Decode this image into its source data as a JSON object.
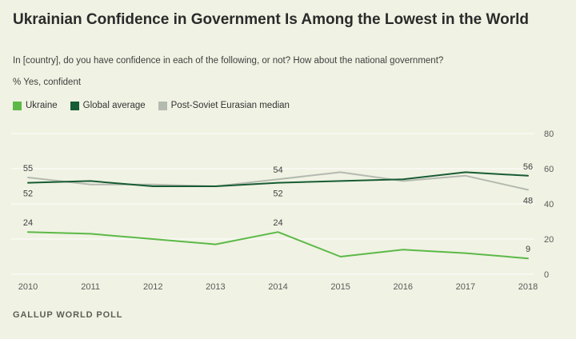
{
  "header": {
    "title": "Ukrainian Confidence in Government Is Among the Lowest in the World",
    "subtitle": "In [country], do you have confidence in each of the following, or not? How about the national government?",
    "axis_note": "% Yes, confident"
  },
  "legend": {
    "items": [
      {
        "label": "Ukraine",
        "color": "#5cb947"
      },
      {
        "label": "Global average",
        "color": "#175c33"
      },
      {
        "label": "Post-Soviet Eurasian median",
        "color": "#b4bab0"
      }
    ]
  },
  "chart_data": {
    "type": "line",
    "title": "Ukrainian Confidence in Government Is Among the Lowest in the World",
    "xlabel": "",
    "ylabel": "% Yes, confident",
    "x": [
      2010,
      2011,
      2012,
      2013,
      2014,
      2015,
      2016,
      2017,
      2018
    ],
    "series": [
      {
        "name": "Ukraine",
        "color": "#5cb947",
        "values": [
          24,
          23,
          20,
          17,
          24,
          10,
          14,
          12,
          9
        ]
      },
      {
        "name": "Global average",
        "color": "#175c33",
        "values": [
          52,
          53,
          50,
          50,
          52,
          53,
          54,
          58,
          56
        ]
      },
      {
        "name": "Post-Soviet Eurasian median",
        "color": "#b4bab0",
        "values": [
          55,
          51,
          51,
          50,
          54,
          58,
          53,
          56,
          48
        ]
      }
    ],
    "point_labels": [
      {
        "series": "Post-Soviet Eurasian median",
        "year": 2010,
        "text": "55",
        "position": "above"
      },
      {
        "series": "Global average",
        "year": 2010,
        "text": "52",
        "position": "below"
      },
      {
        "series": "Ukraine",
        "year": 2010,
        "text": "24",
        "position": "above"
      },
      {
        "series": "Post-Soviet Eurasian median",
        "year": 2014,
        "text": "54",
        "position": "above"
      },
      {
        "series": "Global average",
        "year": 2014,
        "text": "52",
        "position": "below"
      },
      {
        "series": "Ukraine",
        "year": 2014,
        "text": "24",
        "position": "above"
      },
      {
        "series": "Global average",
        "year": 2018,
        "text": "56",
        "position": "above"
      },
      {
        "series": "Post-Soviet Eurasian median",
        "year": 2018,
        "text": "48",
        "position": "below"
      },
      {
        "series": "Ukraine",
        "year": 2018,
        "text": "9",
        "position": "above"
      }
    ],
    "ylim": [
      0,
      80
    ],
    "yticks": [
      0,
      20,
      40,
      60,
      80
    ],
    "grid": true,
    "legend_position": "top-left",
    "colors": {
      "grid": "#ffffff",
      "tick_text": "#5a5a5a",
      "label_text": "#3f3f3f",
      "background": "#f0f2e3"
    }
  },
  "footer": {
    "source": "GALLUP WORLD POLL"
  }
}
